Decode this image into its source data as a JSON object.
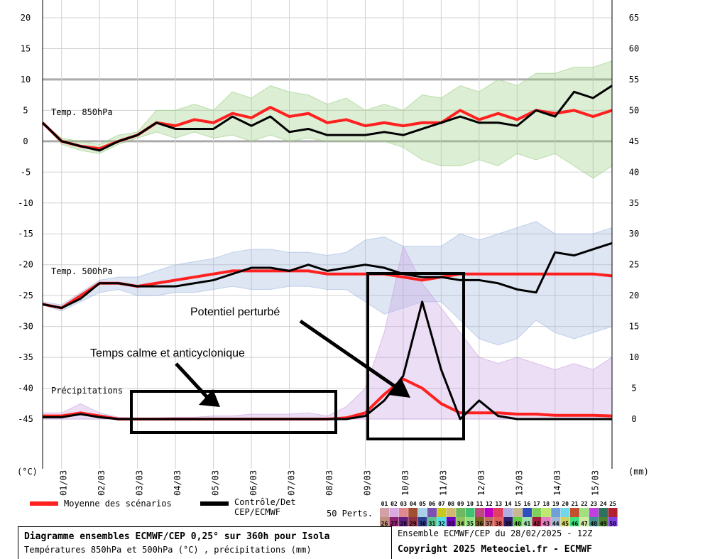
{
  "chart_data": {
    "type": "line",
    "title": "Diagramme ensembles ECMWF/CEP 0,25° sur 360h pour Isola",
    "subtitle": "Températures 850hPa et 500hPa (°C) , précipitations (mm)",
    "run_label": "Ensemble ECMWF/CEP du 28/02/2025 - 12Z",
    "copyright": "Copyright 2025 Meteociel.fr - ECMWF",
    "left_axis": {
      "label": "(°C)",
      "range": [
        -45,
        20
      ],
      "ticks": [
        20,
        15,
        10,
        5,
        0,
        -5,
        -10,
        -15,
        -20,
        -25,
        -30,
        -35,
        -40,
        -45
      ]
    },
    "right_axis": {
      "label": "(mm)",
      "range": [
        0,
        65
      ],
      "ticks": [
        65,
        60,
        55,
        50,
        45,
        40,
        35,
        30,
        25,
        20,
        15,
        10,
        5,
        0
      ]
    },
    "x_ticks": [
      "01/03",
      "02/03",
      "03/03",
      "04/03",
      "05/03",
      "06/03",
      "07/03",
      "08/03",
      "09/03",
      "10/03",
      "11/03",
      "12/03",
      "13/03",
      "14/03",
      "15/03"
    ],
    "x_step_hours": 12,
    "grid": true,
    "panel_labels": [
      "Temp. 850hPa",
      "Temp. 500hPa",
      "Précipitations"
    ],
    "series": [
      {
        "name": "Moyenne des scénarios",
        "panel": "t850",
        "color": "#ff2020",
        "values": [
          3,
          0,
          -0.8,
          -1.2,
          0,
          1,
          3,
          2.5,
          3.5,
          3,
          4.5,
          3.8,
          5.5,
          4,
          4.5,
          3,
          3.5,
          2.5,
          3,
          2.5,
          3,
          3,
          5,
          3.5,
          4.5,
          3.5,
          5,
          4.5,
          5,
          4,
          5
        ]
      },
      {
        "name": "Contrôle/Det CEP/ECMWF",
        "panel": "t850",
        "color": "#000000",
        "values": [
          3,
          0,
          -0.8,
          -1.5,
          0,
          1,
          3,
          2,
          2,
          2,
          4,
          2.5,
          4,
          1.5,
          2,
          1,
          1,
          1,
          1.5,
          1,
          2,
          3,
          4,
          3,
          3,
          2.5,
          5,
          4,
          8,
          7,
          9
        ]
      },
      {
        "name": "Moyenne des scénarios",
        "panel": "t500",
        "color": "#ff2020",
        "values": [
          -26.4,
          -27,
          -25,
          -23,
          -23,
          -23.5,
          -23,
          -22.5,
          -22,
          -21.5,
          -21,
          -21,
          -21,
          -21,
          -21,
          -21.5,
          -21.5,
          -21.5,
          -21.5,
          -22,
          -22.5,
          -22,
          -21.5,
          -21.5,
          -21.5,
          -21.5,
          -21.5,
          -21.5,
          -21.5,
          -21.5,
          -21.8
        ]
      },
      {
        "name": "Contrôle/Det CEP/ECMWF",
        "panel": "t500",
        "color": "#000000",
        "values": [
          -26.4,
          -27,
          -25.5,
          -23,
          -23,
          -23.5,
          -23.5,
          -23.5,
          -23,
          -22.5,
          -21.5,
          -20.5,
          -20.5,
          -21,
          -20,
          -21,
          -20.5,
          -20,
          -20.5,
          -21.5,
          -22,
          -22,
          -22.5,
          -22.5,
          -23,
          -24,
          -24.5,
          -18,
          -18.5,
          -17.5,
          -16.5
        ]
      },
      {
        "name": "Moyenne des scénarios",
        "panel": "precip_mm",
        "color": "#ff2020",
        "values": [
          0.5,
          0.5,
          1,
          0.5,
          0,
          0,
          0,
          0,
          0,
          0,
          0,
          0,
          0,
          0,
          0,
          0,
          0.2,
          1,
          4,
          6.5,
          5,
          2.5,
          1,
          1,
          1,
          0.8,
          0.8,
          0.6,
          0.6,
          0.6,
          0.5
        ]
      },
      {
        "name": "Contrôle/Det CEP/ECMWF",
        "panel": "precip_mm",
        "color": "#000000",
        "values": [
          0.3,
          0.3,
          0.8,
          0.3,
          0,
          0,
          0,
          0,
          0,
          0,
          0,
          0,
          0,
          0,
          0,
          0,
          0,
          0.5,
          3,
          7,
          19,
          8,
          0,
          3,
          0.5,
          0,
          0,
          0,
          0,
          0,
          0
        ]
      }
    ],
    "ensemble_envelope": {
      "t850_max": [
        3,
        0.5,
        0,
        -0.5,
        1,
        1.5,
        5,
        5,
        6,
        5,
        8,
        7,
        9,
        8,
        7.5,
        6,
        7,
        5,
        6,
        5,
        7.5,
        7,
        9,
        8,
        10,
        9,
        11,
        11,
        12,
        12,
        13
      ],
      "t850_min": [
        3,
        -0.5,
        -1.5,
        -2,
        -0.5,
        0.5,
        1.5,
        0.5,
        1.5,
        0.5,
        1,
        0,
        1,
        0,
        0.5,
        0,
        0,
        0,
        0,
        -1,
        -3,
        -4,
        -4,
        -3,
        -4,
        -2,
        -3,
        -2,
        -4,
        -6,
        -4
      ],
      "t500_max": [
        -26,
        -26.5,
        -24.5,
        -22.5,
        -22,
        -22,
        -21,
        -20,
        -19.5,
        -19,
        -18,
        -17.5,
        -17.5,
        -18,
        -18,
        -18.5,
        -18,
        -16,
        -15.5,
        -17,
        -17,
        -17,
        -15,
        -16,
        -15,
        -14,
        -13,
        -15,
        -15,
        -15,
        -14
      ],
      "t500_min": [
        -26.5,
        -27.5,
        -26,
        -24.5,
        -24,
        -25,
        -25,
        -24.5,
        -24.5,
        -24,
        -23.5,
        -24,
        -24,
        -23.5,
        -23.5,
        -24,
        -24,
        -26,
        -28,
        -27,
        -26,
        -26,
        -29,
        -32,
        -33,
        -32,
        -29,
        -31,
        -32,
        -31,
        -30
      ],
      "precip_max": [
        1,
        1,
        2.5,
        1,
        0.3,
        0.2,
        0.2,
        0.3,
        0.3,
        0.5,
        0.5,
        0.8,
        0.8,
        0.8,
        1,
        0.5,
        2,
        5,
        14,
        28,
        22,
        18,
        14,
        10,
        9,
        10,
        9,
        8,
        9,
        8,
        10
      ],
      "precip_min": [
        0,
        0,
        0,
        0,
        0,
        0,
        0,
        0,
        0,
        0,
        0,
        0,
        0,
        0,
        0,
        0,
        0,
        0,
        0,
        0,
        0,
        0,
        0,
        0,
        0,
        0,
        0,
        0,
        0,
        0,
        0
      ]
    },
    "annotations": [
      {
        "text": "Potentiel perturbé",
        "target": "09/03-11/03"
      },
      {
        "text": "Temps calme et anticyclonique",
        "target": "03/03-08/03"
      }
    ],
    "legend": {
      "mean_label": "Moyenne des scénarios",
      "control_label_1": "Contrôle/Det",
      "control_label_2": "CEP/ECMWF",
      "perts_label": "50 Perts.",
      "member_colors": [
        "#d4a0a8",
        "#d8a8e0",
        "#e08890",
        "#a05030",
        "#a8d0e8",
        "#8050b0",
        "#c8c820",
        "#d0b870",
        "#70b860",
        "#40c070",
        "#c04880",
        "#c000c0",
        "#e04060",
        "#b0b0e0",
        "#c8b890",
        "#3050c0",
        "#80d060",
        "#c0e870",
        "#70a0d8",
        "#70d8e8",
        "#c05030",
        "#a0e080",
        "#c040e0",
        "#307060",
        "#b02030",
        "#c09080",
        "#902070",
        "#602080",
        "#903040",
        "#304090",
        "#60c090",
        "#50e0e0",
        "#7000c0",
        "#90c060",
        "#90e080",
        "#806020",
        "#c07060",
        "#e06060",
        "#302070",
        "#60d040",
        "#a0e0b0",
        "#a02040",
        "#e080c0",
        "#a0b8d0",
        "#d0d060",
        "#40e080",
        "#d0e8a0",
        "#409090",
        "#508030",
        "#8040e0"
      ]
    }
  }
}
